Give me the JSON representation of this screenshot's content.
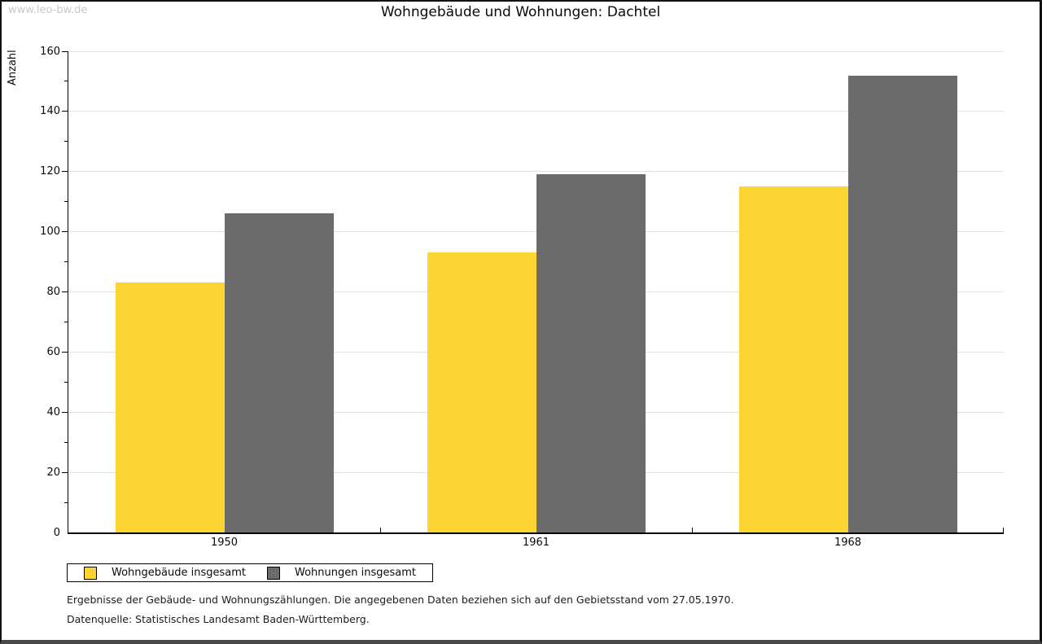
{
  "page": {
    "watermark": "www.leo-bw.de"
  },
  "chart_data": {
    "type": "bar",
    "title": "Wohngebäude und Wohnungen: Dachtel",
    "xlabel": "",
    "ylabel": "Anzahl",
    "categories": [
      "1950",
      "1961",
      "1968"
    ],
    "series": [
      {
        "name": "Wohngebäude insgesamt",
        "color": "#FCD532",
        "values": [
          83,
          93,
          115
        ]
      },
      {
        "name": "Wohnungen insgesamt",
        "color": "#6B6B6B",
        "values": [
          106,
          119,
          152
        ]
      }
    ],
    "ylim": [
      0,
      160
    ],
    "yticks": [
      0,
      20,
      40,
      60,
      80,
      100,
      120,
      140,
      160
    ],
    "y_minor_step": 10,
    "grid": "horizontal-major",
    "legend_position": "bottom-left"
  },
  "footer": {
    "line1": "Ergebnisse der Gebäude- und Wohnungszählungen. Die angegebenen Daten beziehen sich auf den Gebietsstand vom 27.05.1970.",
    "line2": "Datenquelle: Statistisches Landesamt Baden-Württemberg."
  }
}
